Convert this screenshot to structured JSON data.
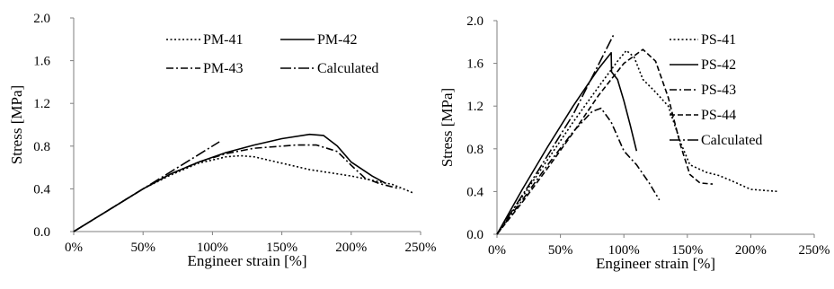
{
  "chart_data": [
    {
      "type": "line",
      "xlabel": "Engineer strain [%]",
      "ylabel": "Stress [MPa]",
      "xlim": [
        0,
        250
      ],
      "ylim": [
        0,
        2.0
      ],
      "x_ticks": [
        "0%",
        "50%",
        "100%",
        "150%",
        "200%",
        "250%"
      ],
      "x_tick_values": [
        0,
        50,
        100,
        150,
        200,
        250
      ],
      "y_ticks": [
        "0.0",
        "0.4",
        "0.8",
        "1.2",
        "1.6",
        "2.0"
      ],
      "y_tick_values": [
        0,
        0.4,
        0.8,
        1.2,
        1.6,
        2.0
      ],
      "grid": false,
      "legend_position": "top-right",
      "series": [
        {
          "name": "PM-41",
          "dash": "2,2.5",
          "x": [
            0,
            20,
            40,
            50,
            70,
            90,
            110,
            120,
            130,
            150,
            170,
            200,
            230,
            245
          ],
          "y": [
            0,
            0.16,
            0.32,
            0.4,
            0.53,
            0.64,
            0.7,
            0.71,
            0.7,
            0.64,
            0.58,
            0.52,
            0.44,
            0.36
          ]
        },
        {
          "name": "PM-42",
          "dash": "",
          "x": [
            0,
            20,
            40,
            50,
            70,
            90,
            110,
            130,
            150,
            170,
            180,
            190,
            200,
            215,
            225
          ],
          "y": [
            0,
            0.16,
            0.32,
            0.4,
            0.54,
            0.65,
            0.74,
            0.81,
            0.87,
            0.91,
            0.9,
            0.8,
            0.65,
            0.52,
            0.45
          ]
        },
        {
          "name": "PM-43",
          "dash": "8,3,2,3",
          "x": [
            0,
            20,
            40,
            50,
            70,
            90,
            110,
            130,
            160,
            175,
            190,
            200,
            210,
            220,
            235
          ],
          "y": [
            0,
            0.16,
            0.32,
            0.4,
            0.54,
            0.65,
            0.73,
            0.78,
            0.81,
            0.81,
            0.75,
            0.62,
            0.5,
            0.45,
            0.4
          ]
        },
        {
          "name": "Calculated",
          "dash": "12,3,2,3",
          "x": [
            0,
            50,
            75,
            105
          ],
          "y": [
            0,
            0.4,
            0.6,
            0.84
          ]
        }
      ]
    },
    {
      "type": "line",
      "xlabel": "Engineer strain [%]",
      "ylabel": "Stress [MPa]",
      "xlim": [
        0,
        250
      ],
      "ylim": [
        0,
        2.0
      ],
      "x_ticks": [
        "0%",
        "50%",
        "100%",
        "150%",
        "200%",
        "250%"
      ],
      "x_tick_values": [
        0,
        50,
        100,
        150,
        200,
        250
      ],
      "y_ticks": [
        "0.0",
        "0.4",
        "0.8",
        "1.2",
        "1.6",
        "2.0"
      ],
      "y_tick_values": [
        0,
        0.4,
        0.8,
        1.2,
        1.6,
        2.0
      ],
      "grid": false,
      "legend_position": "top-right",
      "series": [
        {
          "name": "PS-41",
          "dash": "2,2.5",
          "x": [
            0,
            20,
            40,
            60,
            80,
            95,
            102,
            108,
            115,
            125,
            135,
            145,
            152,
            165,
            175,
            185,
            200,
            222
          ],
          "y": [
            0,
            0.35,
            0.7,
            1.05,
            1.38,
            1.62,
            1.72,
            1.66,
            1.45,
            1.33,
            1.2,
            0.85,
            0.65,
            0.58,
            0.55,
            0.5,
            0.42,
            0.4
          ]
        },
        {
          "name": "PS-42",
          "dash": "",
          "x": [
            0,
            20,
            40,
            60,
            80,
            88,
            90,
            90.3,
            95,
            100,
            105,
            110
          ],
          "y": [
            0,
            0.42,
            0.82,
            1.2,
            1.55,
            1.67,
            1.7,
            1.52,
            1.45,
            1.25,
            1.02,
            0.78
          ]
        },
        {
          "name": "PS-43",
          "dash": "8,3,2,3",
          "x": [
            0,
            20,
            40,
            60,
            75,
            82,
            90,
            100,
            110,
            120,
            128
          ],
          "y": [
            0,
            0.32,
            0.65,
            0.96,
            1.15,
            1.18,
            1.05,
            0.78,
            0.65,
            0.48,
            0.32
          ]
        },
        {
          "name": "PS-44",
          "dash": "6,3",
          "x": [
            0,
            20,
            40,
            60,
            80,
            100,
            115,
            125,
            135,
            145,
            152,
            160,
            170
          ],
          "y": [
            0,
            0.3,
            0.62,
            0.95,
            1.3,
            1.6,
            1.73,
            1.62,
            1.28,
            0.82,
            0.56,
            0.48,
            0.47
          ]
        },
        {
          "name": "Calculated",
          "dash": "12,3,2,3",
          "x": [
            0,
            30,
            60,
            92
          ],
          "y": [
            0,
            0.55,
            1.12,
            1.87
          ]
        }
      ]
    }
  ]
}
